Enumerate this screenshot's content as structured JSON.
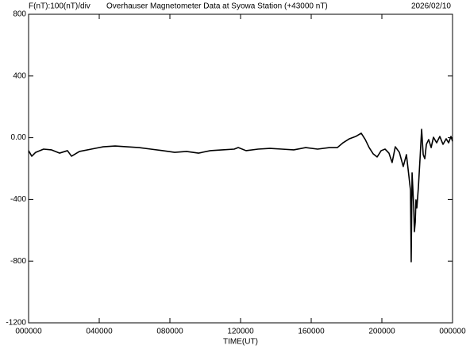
{
  "chart_data": {
    "type": "line",
    "title": "Overhauser Magnetometer Data at Syowa Station (+43000 nT)",
    "scale_note": "F(nT):100(nT)/div",
    "date": "2026/02/10",
    "x_label": "TIME(UT)",
    "xlim": [
      0,
      24
    ],
    "xticks": [
      {
        "value": 0,
        "label": "000000"
      },
      {
        "value": 4,
        "label": "040000"
      },
      {
        "value": 8,
        "label": "080000"
      },
      {
        "value": 12,
        "label": "120000"
      },
      {
        "value": 16,
        "label": "160000"
      },
      {
        "value": 20,
        "label": "200000"
      },
      {
        "value": 24,
        "label": "000000"
      }
    ],
    "ylim": [
      -1200,
      800
    ],
    "yticks": [
      -1200,
      -800,
      -400,
      {
        "value": 0,
        "label": "0.00"
      },
      400,
      800
    ],
    "grid": false,
    "series": [
      {
        "color": "#000000",
        "x": [
          0,
          0.18,
          0.4,
          0.85,
          1.3,
          1.75,
          2.2,
          2.43,
          2.88,
          3.55,
          4.22,
          4.9,
          5.57,
          6.25,
          6.92,
          7.6,
          8.27,
          8.94,
          9.62,
          10.29,
          10.97,
          11.64,
          11.87,
          12.31,
          12.99,
          13.66,
          14.34,
          15.01,
          15.69,
          16.36,
          17.03,
          17.48,
          17.8,
          18.16,
          18.52,
          18.83,
          19.06,
          19.28,
          19.51,
          19.73,
          19.96,
          20.18,
          20.4,
          20.58,
          20.76,
          20.99,
          21.21,
          21.39,
          21.53,
          21.62,
          21.66,
          21.71,
          21.8,
          21.84,
          21.89,
          21.93,
          21.98,
          22.07,
          22.16,
          22.25,
          22.34,
          22.43,
          22.52,
          22.65,
          22.79,
          22.92,
          23.1,
          23.28,
          23.46,
          23.64,
          23.78,
          23.91,
          24.0
        ],
        "values": [
          -84,
          -120,
          -95,
          -74,
          -79,
          -100,
          -84,
          -120,
          -89,
          -74,
          -59,
          -54,
          -59,
          -64,
          -74,
          -84,
          -95,
          -89,
          -100,
          -84,
          -79,
          -74,
          -64,
          -84,
          -74,
          -69,
          -74,
          -79,
          -64,
          -74,
          -64,
          -64,
          -33,
          -7,
          8,
          29,
          -12,
          -64,
          -105,
          -125,
          -84,
          -74,
          -100,
          -161,
          -59,
          -95,
          -187,
          -110,
          -249,
          -341,
          -804,
          -228,
          -444,
          -609,
          -547,
          -403,
          -455,
          -316,
          -136,
          54,
          -110,
          -136,
          -43,
          -12,
          -64,
          3,
          -33,
          8,
          -43,
          -7,
          -33,
          8,
          -23
        ]
      }
    ]
  }
}
